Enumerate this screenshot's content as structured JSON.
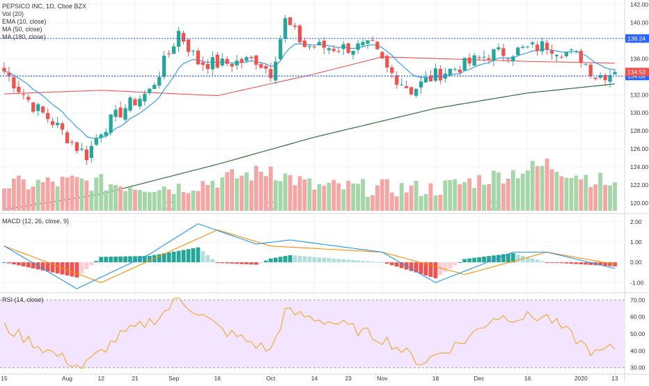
{
  "header": {
    "symbol_line": "PEPSICO INC, 1D, Cboe BZX",
    "indicators": [
      "Vol (20)",
      "EMA (10, close)",
      "MA (50, close)",
      "MA (180, close)"
    ]
  },
  "colors": {
    "up": "#26a69a",
    "down": "#ef5350",
    "vol_up": "#a5d6a7",
    "vol_down": "#f6a5a5",
    "ema10": "#2196f3",
    "ma50": "#ef5350",
    "ma180": "#2e6b3a",
    "level_line": "#2962ff",
    "level_label_bg": "#2962ff",
    "macd_line": "#2196f3",
    "signal_line": "#ff8c00",
    "hist_pos_strong": "#26a69a",
    "hist_pos_weak": "#b2dfdb",
    "hist_neg_strong": "#ef5350",
    "hist_neg_weak": "#ffcdd2",
    "rsi_line": "#f5a623",
    "rsi_band": "#f3e5ff"
  },
  "chart_data": [
    {
      "type": "candlestick",
      "title": "PEPSICO INC, 1D, Cboe BZX",
      "ylim": [
        119,
        142.5
      ],
      "price_axis_ticks": [
        "142.00",
        "140.00",
        "138.00",
        "136.00",
        "134.00",
        "132.00",
        "130.00",
        "128.00",
        "126.00",
        "124.00",
        "122.00",
        "120.00"
      ],
      "levels": [
        {
          "value": 138.24,
          "label": "138.24"
        },
        {
          "value": 134.08,
          "label": "134.08"
        }
      ],
      "last_price": {
        "value": 134.53,
        "label": "134.53"
      },
      "time_axis": [
        "15",
        "Aug",
        "12",
        "21",
        "Sep",
        "16",
        "Oct",
        "14",
        "23",
        "Nov",
        "18",
        "Dec",
        "16",
        "2020",
        "13"
      ],
      "event_markers": [
        {
          "label": "D",
          "date": "Aug 30"
        },
        {
          "label": "E",
          "date": "Oct 1"
        },
        {
          "label": "D",
          "date": "Dec 5"
        }
      ],
      "anchors_ohlc": [
        {
          "date": "Jul 15",
          "close": 134.6
        },
        {
          "date": "Jul 23",
          "close": 130.8
        },
        {
          "date": "Jul 29",
          "close": 129.0
        },
        {
          "date": "Aug 5",
          "close": 126.2
        },
        {
          "date": "Aug 7",
          "close": 125.3
        },
        {
          "date": "Aug 12",
          "close": 128.1
        },
        {
          "date": "Aug 19",
          "close": 130.6
        },
        {
          "date": "Aug 26",
          "close": 132.4
        },
        {
          "date": "Aug 30",
          "close": 136.6
        },
        {
          "date": "Sep 4",
          "close": 139.0
        },
        {
          "date": "Sep 10",
          "close": 135.6
        },
        {
          "date": "Sep 17",
          "close": 135.4
        },
        {
          "date": "Sep 26",
          "close": 135.9
        },
        {
          "date": "Oct 1",
          "close": 134.5
        },
        {
          "date": "Oct 4",
          "close": 140.2
        },
        {
          "date": "Oct 10",
          "close": 137.4
        },
        {
          "date": "Oct 21",
          "close": 137.2
        },
        {
          "date": "Oct 30",
          "close": 137.3
        },
        {
          "date": "Nov 4",
          "close": 134.8
        },
        {
          "date": "Nov 11",
          "close": 132.5
        },
        {
          "date": "Nov 18",
          "close": 134.2
        },
        {
          "date": "Nov 26",
          "close": 135.3
        },
        {
          "date": "Dec 4",
          "close": 136.5
        },
        {
          "date": "Dec 11",
          "close": 136.8
        },
        {
          "date": "Dec 20",
          "close": 137.5
        },
        {
          "date": "Jan 2",
          "close": 136.1
        },
        {
          "date": "Jan 7",
          "close": 134.1
        },
        {
          "date": "Jan 13",
          "close": 134.5
        }
      ],
      "ma180_anchors": [
        {
          "date": "Jul 15",
          "value": 119.3
        },
        {
          "date": "Aug 12",
          "value": 121.0
        },
        {
          "date": "Sep 16",
          "value": 124.3
        },
        {
          "date": "Oct 14",
          "value": 127.3
        },
        {
          "date": "Nov 18",
          "value": 130.5
        },
        {
          "date": "Dec 16",
          "value": 132.2
        },
        {
          "date": "Jan 13",
          "value": 133.2
        }
      ],
      "ma50_anchors": [
        {
          "date": "Jul 15",
          "value": 132.1
        },
        {
          "date": "Aug 12",
          "value": 132.5
        },
        {
          "date": "Sep 16",
          "value": 131.9
        },
        {
          "date": "Oct 14",
          "value": 134.3
        },
        {
          "date": "Nov 1",
          "value": 136.2
        },
        {
          "date": "Dec 16",
          "value": 135.7
        },
        {
          "date": "Jan 13",
          "value": 135.5
        }
      ]
    },
    {
      "type": "bar",
      "title": "Vol (20)",
      "note": "relative volume histogram, max bar near Dec 20",
      "relative_volume_anchors": [
        {
          "date": "Jul 15",
          "value": 0.45
        },
        {
          "date": "Aug 5",
          "value": 0.55
        },
        {
          "date": "Aug 21",
          "value": 0.45
        },
        {
          "date": "Sep 4",
          "value": 0.4
        },
        {
          "date": "Oct 1",
          "value": 0.85
        },
        {
          "date": "Oct 14",
          "value": 0.4
        },
        {
          "date": "Nov 18",
          "value": 0.35
        },
        {
          "date": "Dec 20",
          "value": 1.0
        },
        {
          "date": "Jan 13",
          "value": 0.45
        }
      ]
    },
    {
      "type": "line",
      "title": "MACD (12, 26, close, 9)",
      "ylim": [
        -1.4,
        2.3
      ],
      "axis_ticks": [
        "2.00",
        "1.00",
        "0.00",
        "-1.00"
      ],
      "series": [
        {
          "name": "MACD",
          "anchors": [
            {
              "date": "Jul 15",
              "value": 0.8
            },
            {
              "date": "Aug 5",
              "value": -1.3
            },
            {
              "date": "Aug 26",
              "value": 0.4
            },
            {
              "date": "Sep 10",
              "value": 1.9
            },
            {
              "date": "Sep 26",
              "value": 0.9
            },
            {
              "date": "Oct 7",
              "value": 1.1
            },
            {
              "date": "Nov 1",
              "value": 0.5
            },
            {
              "date": "Nov 18",
              "value": -1.0
            },
            {
              "date": "Dec 11",
              "value": 0.5
            },
            {
              "date": "Dec 20",
              "value": 0.5
            },
            {
              "date": "Jan 13",
              "value": -0.3
            }
          ]
        },
        {
          "name": "Signal",
          "anchors": [
            {
              "date": "Jul 15",
              "value": 0.8
            },
            {
              "date": "Aug 12",
              "value": -1.0
            },
            {
              "date": "Sep 16",
              "value": 1.6
            },
            {
              "date": "Oct 1",
              "value": 0.8
            },
            {
              "date": "Nov 1",
              "value": 0.5
            },
            {
              "date": "Nov 26",
              "value": -0.6
            },
            {
              "date": "Dec 20",
              "value": 0.5
            },
            {
              "date": "Jan 13",
              "value": -0.1
            }
          ]
        }
      ]
    },
    {
      "type": "line",
      "title": "RSI (14, close)",
      "ylim": [
        27,
        73
      ],
      "axis_ticks": [
        "70.00",
        "60.00",
        "50.00",
        "40.00",
        "30.00"
      ],
      "band": [
        30,
        70
      ],
      "anchors": [
        {
          "date": "Jul 15",
          "value": 54
        },
        {
          "date": "Jul 26",
          "value": 40
        },
        {
          "date": "Aug 6",
          "value": 30
        },
        {
          "date": "Aug 16",
          "value": 49
        },
        {
          "date": "Aug 28",
          "value": 60
        },
        {
          "date": "Sep 4",
          "value": 71
        },
        {
          "date": "Sep 17",
          "value": 52
        },
        {
          "date": "Oct 1",
          "value": 40
        },
        {
          "date": "Oct 4",
          "value": 63
        },
        {
          "date": "Oct 21",
          "value": 56
        },
        {
          "date": "Nov 4",
          "value": 46
        },
        {
          "date": "Nov 13",
          "value": 33
        },
        {
          "date": "Nov 26",
          "value": 46
        },
        {
          "date": "Dec 5",
          "value": 60
        },
        {
          "date": "Dec 20",
          "value": 60
        },
        {
          "date": "Jan 7",
          "value": 38
        },
        {
          "date": "Jan 13",
          "value": 42
        }
      ]
    }
  ]
}
